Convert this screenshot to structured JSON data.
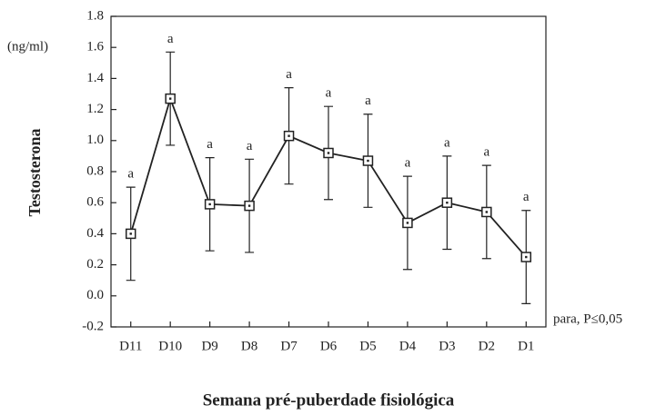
{
  "chart_data": {
    "type": "line",
    "y_label": "Testosterona",
    "unit_label": "(ng/ml)",
    "x_label": "Semana pré-puberdade fisiológica",
    "note": "para, P≤0,05",
    "categories": [
      "D11",
      "D10",
      "D9",
      "D8",
      "D7",
      "D6",
      "D5",
      "D4",
      "D3",
      "D2",
      "D1"
    ],
    "series": [
      {
        "values": [
          0.4,
          1.27,
          0.59,
          0.58,
          1.03,
          0.92,
          0.87,
          0.47,
          0.6,
          0.54,
          0.25
        ],
        "errors": [
          0.3,
          0.3,
          0.3,
          0.3,
          0.31,
          0.3,
          0.3,
          0.3,
          0.3,
          0.3,
          0.3
        ],
        "annotations": [
          "a",
          "a",
          "a",
          "a",
          "a",
          "a",
          "a",
          "a",
          "a",
          "a",
          "a"
        ],
        "color": "#222222"
      }
    ],
    "ylim": [
      -0.2,
      1.8
    ],
    "yticks": [
      -0.2,
      {
        "value": 0,
        "label": "0.0"
      },
      0.2,
      0.4,
      0.6,
      0.8,
      {
        "value": 1,
        "label": "1.0"
      },
      1.2,
      1.4,
      1.6,
      1.8
    ]
  }
}
